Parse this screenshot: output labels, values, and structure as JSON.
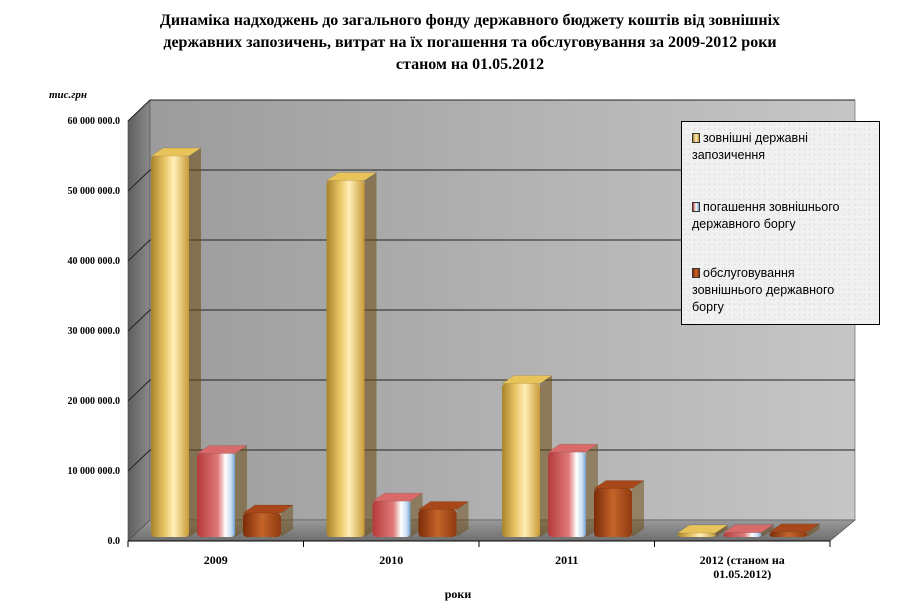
{
  "chart_data": {
    "type": "bar",
    "title": [
      "Динаміка надходжень до загального фонду державного бюджету коштів від зовнішніх",
      "державних запозичень, витрат на їх погашення та обслуговування за 2009-2012 роки",
      "станом на 01.05.2012"
    ],
    "ylabel": "тис.грн",
    "xlabel": "роки",
    "ylim": [
      0,
      60000000
    ],
    "yticks": [
      "0.0",
      "10 000 000.0",
      "20 000 000.0",
      "30 000 000.0",
      "40 000 000.0",
      "50 000 000.0",
      "60 000 000.0"
    ],
    "categories": [
      "2009",
      "2010",
      "2011",
      "2012  (станом на 01.05.2012)"
    ],
    "category_lines": [
      [
        "2009"
      ],
      [
        "2010"
      ],
      [
        "2011"
      ],
      [
        "2012  (станом на",
        "01.05.2012)"
      ]
    ],
    "series": [
      {
        "name": "зовнішні державні запозичення",
        "legend_lines": [
          "зовнішні державні",
          "запозичення"
        ],
        "color": "#d9b04a",
        "values": [
          55000000,
          51500000,
          22500000,
          200000
        ]
      },
      {
        "name": "погашення зовнішнього державного боргу",
        "legend_lines": [
          "погашення зовнішнього",
          "державного боргу"
        ],
        "color": "#c04a4a",
        "values": [
          12500000,
          5700000,
          12700000,
          1200000
        ]
      },
      {
        "name": "обслуговування зовнішнього державного боргу",
        "legend_lines": [
          "обслуговування",
          "зовнішнього державного",
          "боргу"
        ],
        "color": "#b24a12",
        "values": [
          4000000,
          4500000,
          7500000,
          1300000
        ]
      }
    ],
    "grid": true,
    "legend_position": "right"
  }
}
